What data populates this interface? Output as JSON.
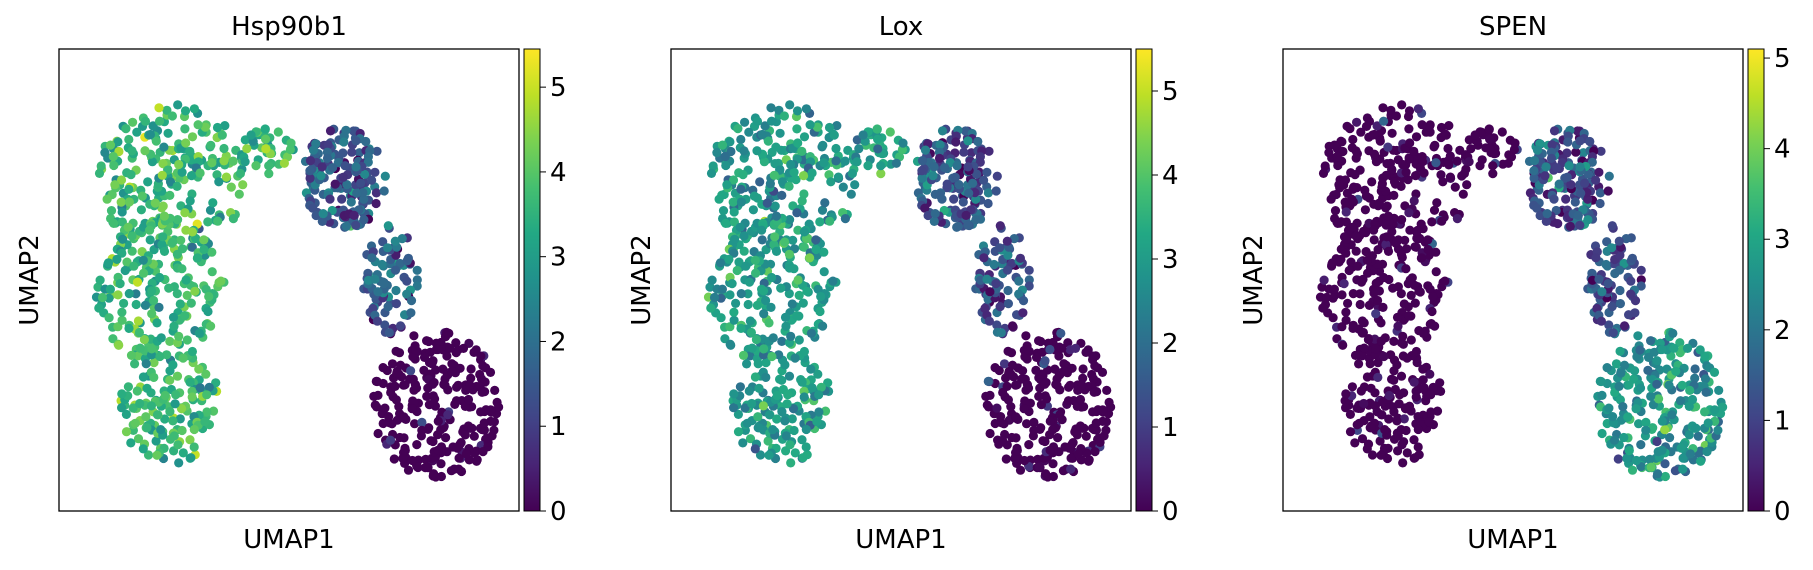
{
  "chart_data": [
    {
      "type": "scatter",
      "title": "Hsp90b1",
      "xlabel": "UMAP1",
      "ylabel": "UMAP2",
      "colormap": "viridis",
      "color_range": [
        0,
        5.45
      ],
      "colorbar_ticks": [
        "0",
        "1",
        "2",
        "3",
        "4",
        "5"
      ],
      "cluster_means": {
        "left_cluster": 3.6,
        "middle_cluster": 1.6,
        "bottom_right_cluster": 0.1
      }
    },
    {
      "type": "scatter",
      "title": "Lox",
      "xlabel": "UMAP1",
      "ylabel": "UMAP2",
      "colormap": "viridis",
      "color_range": [
        0,
        5.5
      ],
      "colorbar_ticks": [
        "0",
        "1",
        "2",
        "3",
        "4",
        "5"
      ],
      "cluster_means": {
        "left_cluster": 3.0,
        "middle_cluster": 1.4,
        "bottom_right_cluster": 0.4
      }
    },
    {
      "type": "scatter",
      "title": "SPEN",
      "xlabel": "UMAP1",
      "ylabel": "UMAP2",
      "colormap": "viridis",
      "color_range": [
        0,
        5.1
      ],
      "colorbar_ticks": [
        "0",
        "1",
        "2",
        "3",
        "4",
        "5"
      ],
      "cluster_means": {
        "left_cluster": 0.2,
        "middle_cluster": 1.2,
        "bottom_right_cluster": 2.6
      }
    }
  ]
}
